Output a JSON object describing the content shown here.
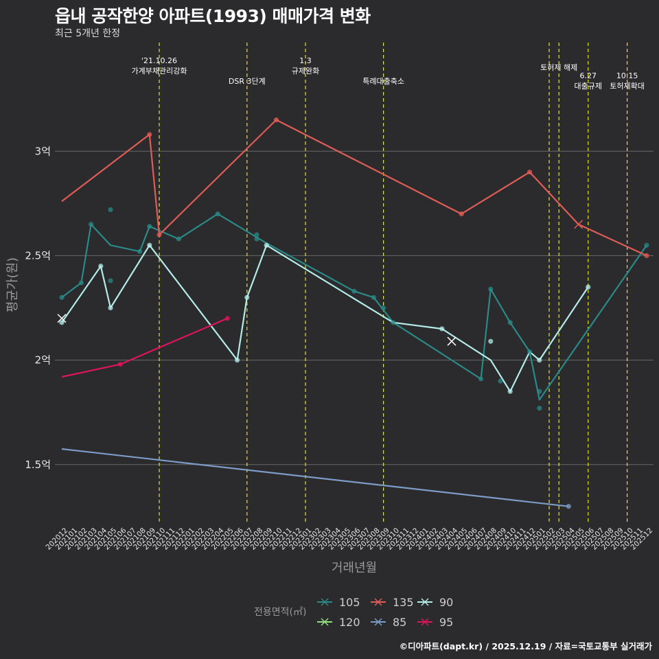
{
  "page": {
    "title": "읍내 공작한양 아파트(1993) 매매가격 변화",
    "subtitle": "최근 5개년 한정",
    "caption": "©디아파트(dapt.kr) / 2025.12.19 / 자료=국토교통부 실거래가"
  },
  "colors": {
    "background": "#2b2a2c",
    "grid": "#6a6a6a",
    "event_line": "#e6e61a",
    "text": "#e8e8e8",
    "muted": "#9a9a9a"
  },
  "chart_data": {
    "type": "line",
    "xlabel": "거래년월",
    "ylabel": "평균가(원)",
    "ylim": [
      1.22,
      3.52
    ],
    "yticks": [
      {
        "value": 1.5,
        "label": "1.5억"
      },
      {
        "value": 2.0,
        "label": "2억"
      },
      {
        "value": 2.5,
        "label": "2.5억"
      },
      {
        "value": 3.0,
        "label": "3억"
      }
    ],
    "x_categories": [
      "202012",
      "202101",
      "202102",
      "202103",
      "202104",
      "202105",
      "202106",
      "202107",
      "202108",
      "202109",
      "202110",
      "202111",
      "202112",
      "202201",
      "202202",
      "202203",
      "202204",
      "202205",
      "202206",
      "202207",
      "202208",
      "202209",
      "202210",
      "202211",
      "202212",
      "202301",
      "202302",
      "202303",
      "202304",
      "202305",
      "202306",
      "202307",
      "202308",
      "202309",
      "202310",
      "202311",
      "202312",
      "202401",
      "202402",
      "202403",
      "202404",
      "202405",
      "202406",
      "202407",
      "202408",
      "202409",
      "202410",
      "202411",
      "202412",
      "202501",
      "202502",
      "202503",
      "202504",
      "202505",
      "202506",
      "202507",
      "202508",
      "202509",
      "202510",
      "202511",
      "202512"
    ],
    "legend_title": "전용면적(㎡)",
    "events": [
      {
        "x": 10,
        "label": "'21.10.26\n가계부채관리강화"
      },
      {
        "x": 19,
        "label": "DSR 3단계"
      },
      {
        "x": 25,
        "label": "1.3\n규제완화"
      },
      {
        "x": 33,
        "label": "특례대출축소"
      },
      {
        "x": 50,
        "label": ""
      },
      {
        "x": 51,
        "label": "토허제 해제"
      },
      {
        "x": 54,
        "label": "6.27\n대출규제"
      },
      {
        "x": 58,
        "label": "10.15\n토허제확대"
      }
    ],
    "series": [
      {
        "name": "105",
        "color": "#2a8a88",
        "line": [
          [
            0,
            2.3
          ],
          [
            2,
            2.37
          ],
          [
            3,
            2.65
          ],
          [
            5,
            2.55
          ],
          [
            8,
            2.52
          ],
          [
            9,
            2.64
          ],
          [
            10,
            2.62
          ],
          [
            12,
            2.58
          ],
          [
            16,
            2.7
          ],
          [
            21,
            2.56
          ],
          [
            30,
            2.33
          ],
          [
            32,
            2.3
          ],
          [
            34,
            2.18
          ],
          [
            43,
            1.91
          ],
          [
            44,
            2.34
          ],
          [
            46,
            2.18
          ],
          [
            48,
            2.04
          ],
          [
            49,
            1.81
          ],
          [
            60,
            2.55
          ]
        ],
        "points": [
          [
            0,
            2.3
          ],
          [
            2,
            2.37
          ],
          [
            3,
            2.65
          ],
          [
            5,
            2.72
          ],
          [
            5,
            2.38
          ],
          [
            8,
            2.52
          ],
          [
            9,
            2.64
          ],
          [
            12,
            2.58
          ],
          [
            16,
            2.7
          ],
          [
            20,
            2.6
          ],
          [
            20,
            2.58
          ],
          [
            30,
            2.33
          ],
          [
            32,
            2.3
          ],
          [
            33,
            2.25
          ],
          [
            34,
            2.18
          ],
          [
            43,
            1.91
          ],
          [
            44,
            2.34
          ],
          [
            45,
            1.9
          ],
          [
            46,
            2.18
          ],
          [
            48,
            2.04
          ],
          [
            49,
            1.85
          ],
          [
            49,
            1.77
          ],
          [
            60,
            2.55
          ]
        ],
        "crosses": []
      },
      {
        "name": "135",
        "color": "#e05d57",
        "line": [
          [
            0,
            2.76
          ],
          [
            9,
            3.08
          ],
          [
            10,
            2.6
          ],
          [
            22,
            3.15
          ],
          [
            41,
            2.7
          ],
          [
            48,
            2.9
          ],
          [
            53,
            2.65
          ],
          [
            60,
            2.5
          ]
        ],
        "points": [
          [
            9,
            3.08
          ],
          [
            10,
            2.6
          ],
          [
            22,
            3.15
          ],
          [
            41,
            2.7
          ],
          [
            48,
            2.9
          ],
          [
            60,
            2.5
          ]
        ],
        "crosses": [
          [
            53,
            2.65
          ]
        ]
      },
      {
        "name": "90",
        "color": "#b3ece8",
        "line": [
          [
            0,
            2.18
          ],
          [
            4,
            2.45
          ],
          [
            5,
            2.25
          ],
          [
            9,
            2.55
          ],
          [
            18,
            2.0
          ],
          [
            19,
            2.3
          ],
          [
            21,
            2.55
          ],
          [
            34,
            2.18
          ],
          [
            39,
            2.15
          ],
          [
            44,
            2.0
          ],
          [
            46,
            1.85
          ],
          [
            48,
            2.04
          ],
          [
            49,
            2.0
          ],
          [
            54,
            2.35
          ]
        ],
        "points": [
          [
            0,
            2.18
          ],
          [
            4,
            2.45
          ],
          [
            5,
            2.25
          ],
          [
            9,
            2.55
          ],
          [
            18,
            2.0
          ],
          [
            19,
            2.3
          ],
          [
            21,
            2.55
          ],
          [
            39,
            2.15
          ],
          [
            44,
            2.09
          ],
          [
            46,
            1.85
          ],
          [
            49,
            2.0
          ],
          [
            54,
            2.35
          ]
        ],
        "crosses": [
          [
            0,
            2.2
          ],
          [
            40,
            2.09
          ]
        ]
      },
      {
        "name": "120",
        "color": "#8fe37e",
        "line": [],
        "points": [],
        "crosses": []
      },
      {
        "name": "85",
        "color": "#7d9cc8",
        "line": [
          [
            0,
            1.575
          ],
          [
            52,
            1.3
          ]
        ],
        "points": [
          [
            52,
            1.3
          ]
        ],
        "crosses": []
      },
      {
        "name": "95",
        "color": "#e0145a",
        "line": [
          [
            0,
            1.92
          ],
          [
            6,
            1.98
          ],
          [
            17,
            2.2
          ]
        ],
        "points": [
          [
            6,
            1.98
          ],
          [
            17,
            2.2
          ]
        ],
        "crosses": []
      }
    ]
  }
}
